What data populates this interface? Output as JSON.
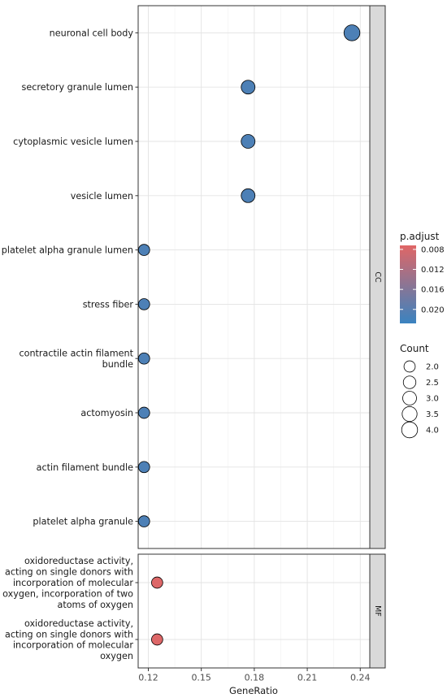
{
  "chart_data": {
    "type": "scatter",
    "subtype": "dotplot (faceted)",
    "xlabel": "GeneRatio",
    "x_ticks": [
      "0.12",
      "0.15",
      "0.18",
      "0.21",
      "0.24"
    ],
    "xlim": [
      0.114,
      0.244
    ],
    "grid": true,
    "facets": [
      {
        "name": "CC",
        "categories": [
          {
            "label": [
              "neuronal cell body"
            ],
            "x": 0.2353,
            "count": 4,
            "p_adjust": 0.021
          },
          {
            "label": [
              "secretory granule lumen"
            ],
            "x": 0.1765,
            "count": 3,
            "p_adjust": 0.021
          },
          {
            "label": [
              "cytoplasmic vesicle lumen"
            ],
            "x": 0.1765,
            "count": 3,
            "p_adjust": 0.021
          },
          {
            "label": [
              "vesicle lumen"
            ],
            "x": 0.1765,
            "count": 3,
            "p_adjust": 0.021
          },
          {
            "label": [
              "platelet alpha granule lumen"
            ],
            "x": 0.1176,
            "count": 2,
            "p_adjust": 0.021
          },
          {
            "label": [
              "stress fiber"
            ],
            "x": 0.1176,
            "count": 2,
            "p_adjust": 0.021
          },
          {
            "label": [
              "contractile actin filament",
              "bundle"
            ],
            "x": 0.1176,
            "count": 2,
            "p_adjust": 0.021
          },
          {
            "label": [
              "actomyosin"
            ],
            "x": 0.1176,
            "count": 2,
            "p_adjust": 0.021
          },
          {
            "label": [
              "actin filament bundle"
            ],
            "x": 0.1176,
            "count": 2,
            "p_adjust": 0.021
          },
          {
            "label": [
              "platelet alpha granule"
            ],
            "x": 0.1176,
            "count": 2,
            "p_adjust": 0.021
          }
        ]
      },
      {
        "name": "MF",
        "categories": [
          {
            "label": [
              "oxidoreductase activity,",
              "acting on single donors with",
              "incorporation of molecular",
              "oxygen, incorporation of two",
              "atoms of oxygen"
            ],
            "x": 0.125,
            "count": 2,
            "p_adjust": 0.0075
          },
          {
            "label": [
              "oxidoreductase activity,",
              "acting on single donors with",
              "incorporation of molecular",
              "oxygen"
            ],
            "x": 0.125,
            "count": 2,
            "p_adjust": 0.0075
          }
        ]
      }
    ],
    "color_legend": {
      "title": "p.adjust",
      "ticks": [
        "0.008",
        "0.012",
        "0.016",
        "0.020"
      ],
      "range": [
        0.0072,
        0.0228
      ],
      "low_color": "#e06666",
      "high_color": "#3a83c0"
    },
    "size_legend": {
      "title": "Count",
      "values": [
        2.0,
        2.5,
        3.0,
        3.5,
        4.0
      ],
      "labels": [
        "2.0",
        "2.5",
        "3.0",
        "3.5",
        "4.0"
      ]
    }
  }
}
